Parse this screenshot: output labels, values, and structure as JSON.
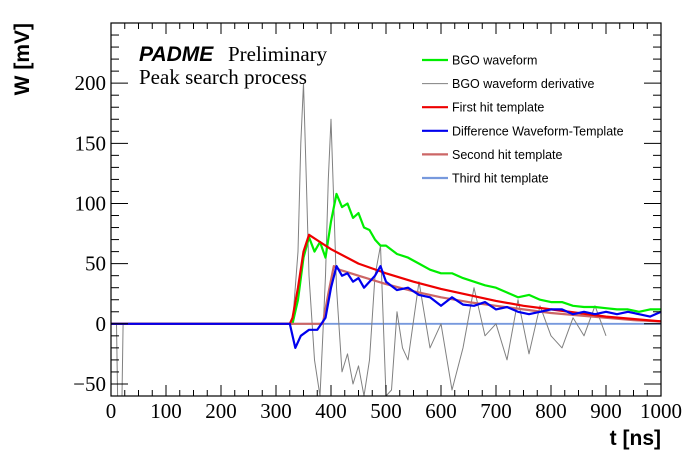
{
  "chart_data": {
    "type": "line",
    "title": "",
    "xlabel": "t [ns]",
    "ylabel": "W [mV]",
    "xlim": [
      0,
      1000
    ],
    "ylim": [
      -60,
      250
    ],
    "xticks": [
      0,
      100,
      200,
      300,
      400,
      500,
      600,
      700,
      800,
      900,
      1000
    ],
    "xtick_labels": [
      "0",
      "100",
      "200",
      "300",
      "400",
      "500",
      "600",
      "700",
      "800",
      "900",
      "1000"
    ],
    "yticks": [
      -50,
      0,
      50,
      100,
      150,
      200
    ],
    "ytick_labels": [
      "−50",
      "0",
      "50",
      "100",
      "150",
      "200"
    ],
    "grid": false,
    "legend_position": "top-right",
    "annotations": {
      "brand": "PADME",
      "status": "Preliminary",
      "subtitle": "Peak search process"
    },
    "series": [
      {
        "name": "BGO waveform",
        "color": "#00ee00",
        "x": [
          0,
          330,
          340,
          350,
          360,
          370,
          380,
          390,
          400,
          410,
          420,
          430,
          440,
          450,
          460,
          470,
          480,
          490,
          500,
          520,
          540,
          560,
          580,
          600,
          620,
          640,
          660,
          680,
          700,
          720,
          740,
          760,
          780,
          800,
          820,
          840,
          860,
          880,
          900,
          920,
          940,
          960,
          980,
          1000
        ],
        "y": [
          0,
          0,
          20,
          55,
          72,
          60,
          68,
          55,
          85,
          108,
          97,
          100,
          88,
          92,
          80,
          78,
          70,
          65,
          65,
          58,
          55,
          50,
          45,
          42,
          42,
          38,
          35,
          32,
          30,
          26,
          22,
          24,
          20,
          18,
          18,
          15,
          14,
          14,
          13,
          12,
          12,
          10,
          12,
          12
        ]
      },
      {
        "name": "BGO waveform derivative",
        "color": "#808080",
        "x": [
          0,
          10,
          12,
          20,
          22,
          30,
          100,
          200,
          300,
          330,
          340,
          345,
          350,
          355,
          360,
          370,
          380,
          385,
          390,
          395,
          400,
          405,
          410,
          420,
          430,
          440,
          450,
          460,
          470,
          480,
          490,
          500,
          510,
          520,
          530,
          540,
          560,
          580,
          600,
          620,
          640,
          660,
          680,
          700,
          720,
          740,
          760,
          780,
          800,
          820,
          840,
          860,
          880,
          900
        ],
        "y": [
          0,
          0,
          -60,
          -60,
          0,
          0,
          0,
          0,
          0,
          0,
          60,
          150,
          200,
          120,
          40,
          -30,
          -60,
          -10,
          40,
          120,
          170,
          100,
          30,
          -40,
          -25,
          -50,
          -35,
          -60,
          -30,
          40,
          65,
          -60,
          -55,
          10,
          -20,
          -30,
          35,
          -20,
          0,
          -55,
          -20,
          30,
          -10,
          0,
          -30,
          20,
          -25,
          15,
          -10,
          -20,
          5,
          -10,
          15,
          -10
        ]
      },
      {
        "name": "First hit template",
        "color": "#ee0000",
        "x": [
          0,
          325,
          330,
          340,
          350,
          360,
          380,
          400,
          450,
          500,
          550,
          600,
          650,
          700,
          750,
          800,
          850,
          900,
          950,
          1000
        ],
        "y": [
          0,
          0,
          5,
          30,
          60,
          74,
          68,
          62,
          50,
          42,
          35,
          29,
          24,
          19,
          15,
          12,
          9,
          6,
          4,
          2
        ]
      },
      {
        "name": "Difference Waveform-Template",
        "color": "#0000ee",
        "x": [
          0,
          100,
          200,
          300,
          325,
          335,
          345,
          360,
          375,
          390,
          400,
          410,
          420,
          430,
          440,
          450,
          460,
          470,
          480,
          490,
          500,
          520,
          540,
          560,
          580,
          600,
          620,
          640,
          660,
          680,
          700,
          720,
          740,
          760,
          780,
          800,
          820,
          840,
          860,
          880,
          900,
          920,
          940,
          960,
          980,
          1000
        ],
        "y": [
          0,
          0,
          0,
          0,
          0,
          -20,
          -10,
          -5,
          -5,
          5,
          30,
          48,
          40,
          42,
          35,
          38,
          30,
          35,
          40,
          48,
          35,
          28,
          30,
          24,
          22,
          15,
          22,
          16,
          15,
          18,
          12,
          14,
          10,
          8,
          10,
          12,
          12,
          8,
          10,
          8,
          10,
          8,
          10,
          8,
          6,
          10
        ]
      },
      {
        "name": "Second hit template",
        "color": "#cc6666",
        "x": [
          0,
          385,
          395,
          405,
          415,
          450,
          500,
          550,
          600,
          650,
          700,
          750,
          800,
          850,
          900,
          950,
          1000
        ],
        "y": [
          0,
          0,
          25,
          48,
          45,
          40,
          33,
          27,
          22,
          18,
          15,
          12,
          9,
          7,
          5,
          3,
          2
        ]
      },
      {
        "name": "Third hit template",
        "color": "#7799dd",
        "x": [
          0,
          1000
        ],
        "y": [
          0,
          0
        ]
      }
    ]
  }
}
